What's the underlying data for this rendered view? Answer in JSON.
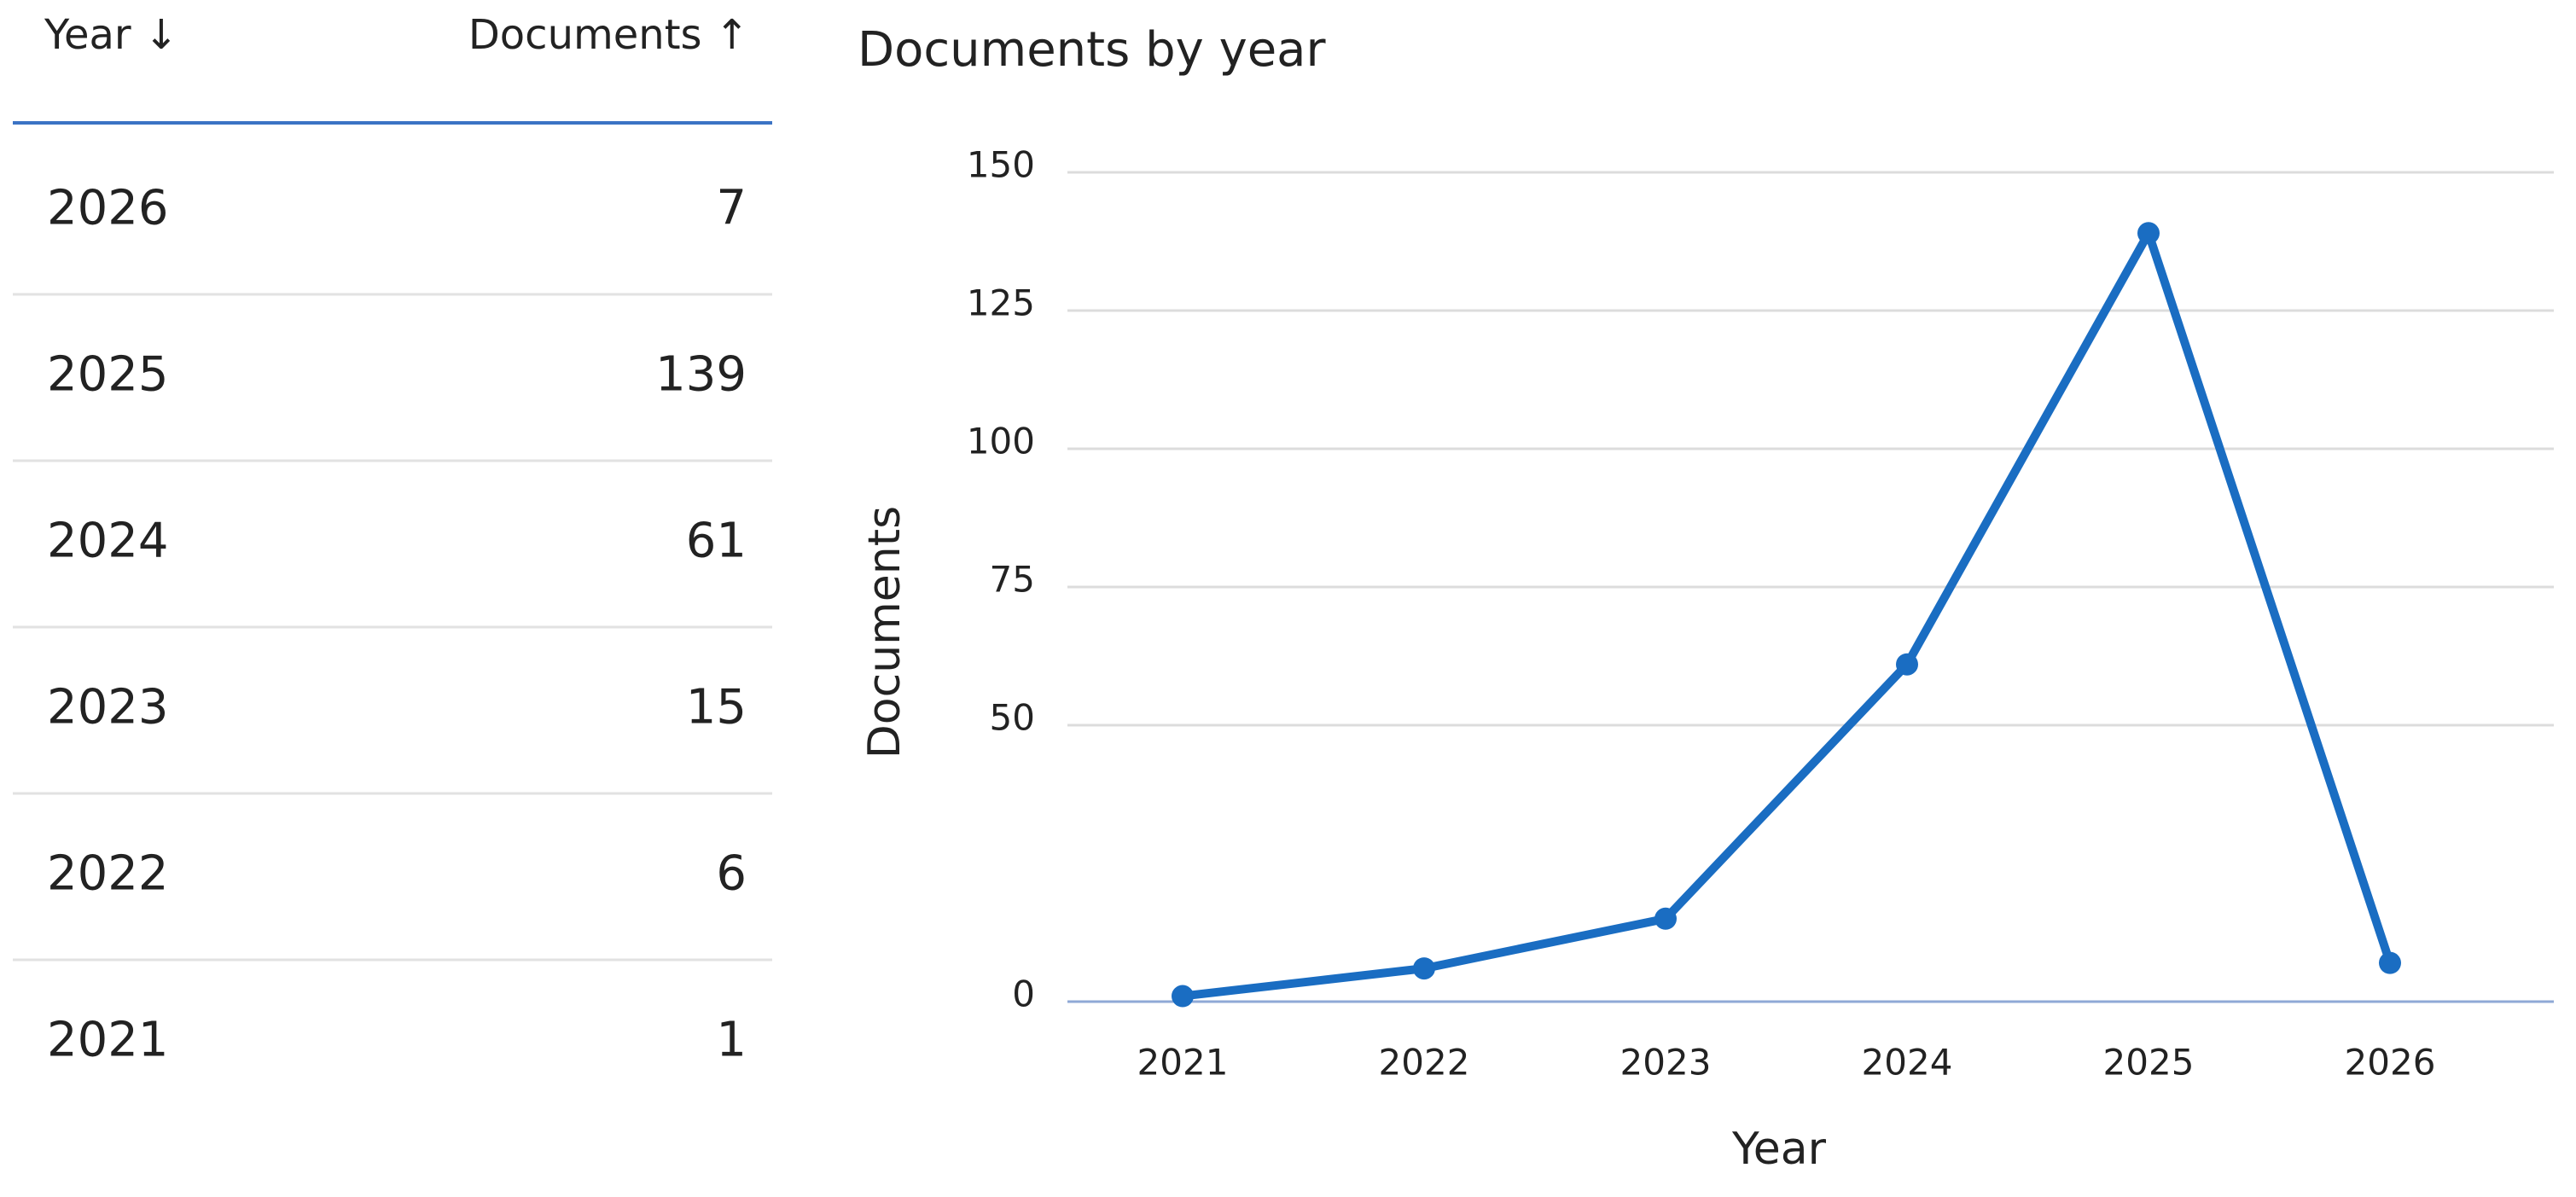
{
  "table": {
    "headers": [
      "Year ↓",
      "Documents ↑"
    ],
    "rows": [
      [
        "2026",
        "7"
      ],
      [
        "2025",
        "139"
      ],
      [
        "2024",
        "61"
      ],
      [
        "2023",
        "15"
      ],
      [
        "2022",
        "6"
      ],
      [
        "2021",
        "1"
      ]
    ]
  },
  "chart_data": {
    "type": "line",
    "title": "Documents by year",
    "x_label": "Year",
    "y_label": "Documents",
    "categories": [
      "2021",
      "2022",
      "2023",
      "2024",
      "2025",
      "2026"
    ],
    "series": [
      {
        "name": "Documents",
        "color": "#1a6dc2",
        "values": [
          1,
          6,
          15,
          61,
          139,
          7
        ]
      }
    ],
    "ylim": [
      0,
      150
    ],
    "yticks": [
      0,
      50,
      75,
      100,
      125,
      150
    ],
    "grid": true
  }
}
